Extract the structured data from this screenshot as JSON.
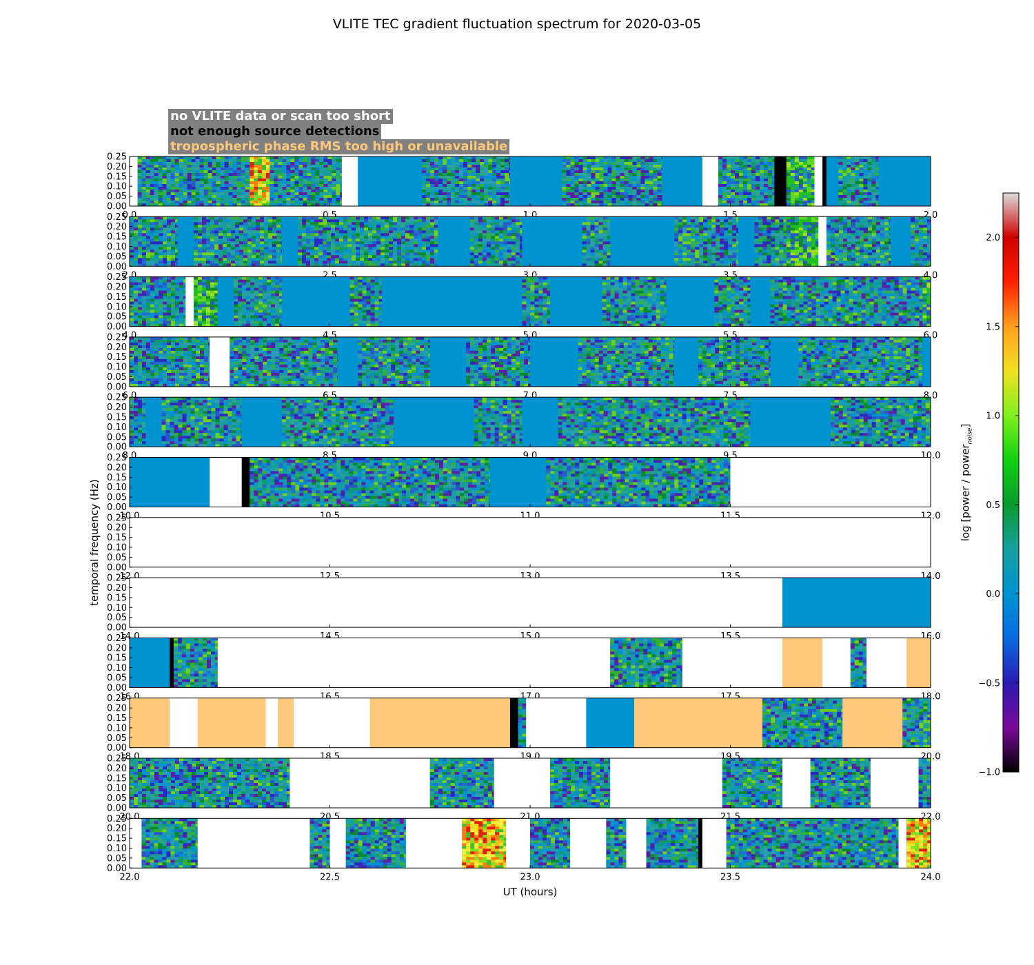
{
  "chart_data": {
    "type": "heatmap",
    "title": "VLITE TEC gradient fluctuation spectrum for 2020-03-05",
    "xlabel": "UT (hours)",
    "ylabel": "temporal frequency (Hz)",
    "colorbar_label": "log [power / power",
    "colorbar_label_sub": "noise",
    "colorbar_label_end": "]",
    "colorbar_range": [
      -1.0,
      2.25
    ],
    "colorbar_ticks": [
      "2.0",
      "1.5",
      "1.0",
      "0.5",
      "0.0",
      "−0.5",
      "−1.0"
    ],
    "colorbar_tick_values": [
      2.0,
      1.5,
      1.0,
      0.5,
      0.0,
      -0.5,
      -1.0
    ],
    "yticks": [
      "0.25",
      "0.20",
      "0.15",
      "0.10",
      "0.05",
      "0.00"
    ],
    "ytick_values": [
      0.25,
      0.2,
      0.15,
      0.1,
      0.05,
      0.0
    ],
    "ylim": [
      0,
      0.25
    ],
    "legend": [
      {
        "label": "no VLITE data or scan too short",
        "color": "#ffffff"
      },
      {
        "label": "not enough source detections",
        "color": "#000000"
      },
      {
        "label": "tropospheric phase RMS too high or unavailable",
        "color": "#ffc87a"
      }
    ],
    "panels": [
      {
        "xlim": [
          0,
          2
        ],
        "xticks": [
          "0.0",
          "0.5",
          "1.0",
          "1.5",
          "2.0"
        ],
        "segments": [
          [
            0.0,
            0.02,
            "n"
          ],
          [
            0.02,
            0.3,
            "d"
          ],
          [
            0.3,
            0.32,
            "h"
          ],
          [
            0.32,
            0.32,
            "n"
          ],
          [
            0.32,
            0.35,
            "h"
          ],
          [
            0.35,
            0.53,
            "d"
          ],
          [
            0.53,
            0.57,
            "n"
          ],
          [
            0.57,
            0.73,
            "q"
          ],
          [
            0.73,
            0.95,
            "d"
          ],
          [
            0.95,
            1.08,
            "q"
          ],
          [
            1.08,
            1.33,
            "d"
          ],
          [
            1.33,
            1.43,
            "q"
          ],
          [
            1.43,
            1.47,
            "n"
          ],
          [
            1.47,
            1.61,
            "d"
          ],
          [
            1.61,
            1.64,
            "b"
          ],
          [
            1.64,
            1.71,
            "g"
          ],
          [
            1.71,
            1.73,
            "n"
          ],
          [
            1.73,
            1.74,
            "b"
          ],
          [
            1.74,
            1.77,
            "q"
          ],
          [
            1.77,
            1.87,
            "d"
          ],
          [
            1.87,
            2.0,
            "q"
          ]
        ]
      },
      {
        "xlim": [
          2,
          4
        ],
        "xticks": [
          "2.0",
          "2.5",
          "3.0",
          "3.5",
          "4.0"
        ],
        "segments": [
          [
            2.0,
            2.12,
            "d"
          ],
          [
            2.12,
            2.16,
            "q"
          ],
          [
            2.16,
            2.38,
            "d"
          ],
          [
            2.38,
            2.42,
            "q"
          ],
          [
            2.42,
            2.77,
            "d"
          ],
          [
            2.77,
            2.85,
            "q"
          ],
          [
            2.85,
            2.98,
            "d"
          ],
          [
            2.98,
            3.13,
            "q"
          ],
          [
            3.13,
            3.2,
            "d"
          ],
          [
            3.2,
            3.36,
            "q"
          ],
          [
            3.36,
            3.52,
            "d"
          ],
          [
            3.52,
            3.56,
            "q"
          ],
          [
            3.56,
            3.64,
            "d"
          ],
          [
            3.64,
            3.72,
            "g"
          ],
          [
            3.72,
            3.74,
            "n"
          ],
          [
            3.74,
            3.9,
            "d"
          ],
          [
            3.9,
            3.95,
            "q"
          ],
          [
            3.95,
            4.0,
            "d"
          ]
        ]
      },
      {
        "xlim": [
          4,
          6
        ],
        "xticks": [
          "4.0",
          "4.5",
          "5.0",
          "5.5",
          "6.0"
        ],
        "segments": [
          [
            4.0,
            4.14,
            "d"
          ],
          [
            4.14,
            4.16,
            "n"
          ],
          [
            4.16,
            4.22,
            "g"
          ],
          [
            4.22,
            4.26,
            "q"
          ],
          [
            4.26,
            4.38,
            "d"
          ],
          [
            4.38,
            4.55,
            "q"
          ],
          [
            4.55,
            4.63,
            "d"
          ],
          [
            4.63,
            4.98,
            "q"
          ],
          [
            4.98,
            5.05,
            "d"
          ],
          [
            5.05,
            5.18,
            "q"
          ],
          [
            5.18,
            5.34,
            "d"
          ],
          [
            5.34,
            5.46,
            "q"
          ],
          [
            5.46,
            5.55,
            "d"
          ],
          [
            5.55,
            5.6,
            "q"
          ],
          [
            5.6,
            5.98,
            "d"
          ],
          [
            5.98,
            6.0,
            "g"
          ]
        ]
      },
      {
        "xlim": [
          6,
          8
        ],
        "xticks": [
          "6.0",
          "6.5",
          "7.0",
          "7.5",
          "8.0"
        ],
        "segments": [
          [
            6.0,
            6.2,
            "d"
          ],
          [
            6.2,
            6.25,
            "n"
          ],
          [
            6.25,
            6.52,
            "d"
          ],
          [
            6.52,
            6.57,
            "q"
          ],
          [
            6.57,
            6.75,
            "d"
          ],
          [
            6.75,
            6.84,
            "q"
          ],
          [
            6.84,
            7.0,
            "d"
          ],
          [
            7.0,
            7.12,
            "q"
          ],
          [
            7.12,
            7.36,
            "d"
          ],
          [
            7.36,
            7.42,
            "q"
          ],
          [
            7.42,
            7.6,
            "d"
          ],
          [
            7.6,
            7.67,
            "q"
          ],
          [
            7.67,
            7.98,
            "d"
          ],
          [
            7.98,
            8.0,
            "q"
          ]
        ]
      },
      {
        "xlim": [
          8,
          10
        ],
        "xticks": [
          "8.0",
          "8.5",
          "9.0",
          "9.5",
          "10.0"
        ],
        "segments": [
          [
            8.0,
            8.04,
            "d"
          ],
          [
            8.04,
            8.08,
            "q"
          ],
          [
            8.08,
            8.28,
            "d"
          ],
          [
            8.28,
            8.38,
            "q"
          ],
          [
            8.38,
            8.66,
            "d"
          ],
          [
            8.66,
            8.86,
            "q"
          ],
          [
            8.86,
            8.98,
            "d"
          ],
          [
            8.98,
            9.07,
            "q"
          ],
          [
            9.07,
            9.55,
            "d"
          ],
          [
            9.55,
            9.75,
            "q"
          ],
          [
            9.75,
            10.0,
            "d"
          ]
        ]
      },
      {
        "xlim": [
          10,
          12
        ],
        "xticks": [
          "10.0",
          "10.5",
          "11.0",
          "11.5",
          "12.0"
        ],
        "segments": [
          [
            10.0,
            10.2,
            "q"
          ],
          [
            10.2,
            10.28,
            "n"
          ],
          [
            10.28,
            10.3,
            "b"
          ],
          [
            10.3,
            10.68,
            "d"
          ],
          [
            10.68,
            10.9,
            "d"
          ],
          [
            10.9,
            11.04,
            "q"
          ],
          [
            11.04,
            11.5,
            "d"
          ],
          [
            11.5,
            12.0,
            "n"
          ]
        ]
      },
      {
        "xlim": [
          12,
          14
        ],
        "xticks": [
          "12.0",
          "12.5",
          "13.0",
          "13.5",
          "14.0"
        ],
        "segments": [
          [
            12.0,
            14.0,
            "n"
          ]
        ]
      },
      {
        "xlim": [
          14,
          16
        ],
        "xticks": [
          "14.0",
          "14.5",
          "15.0",
          "15.5",
          "16.0"
        ],
        "segments": [
          [
            14.0,
            15.63,
            "n"
          ],
          [
            15.63,
            16.0,
            "q"
          ]
        ]
      },
      {
        "xlim": [
          16,
          18
        ],
        "xticks": [
          "16.0",
          "16.5",
          "17.0",
          "17.5",
          "18.0"
        ],
        "segments": [
          [
            16.0,
            16.1,
            "q"
          ],
          [
            16.1,
            16.11,
            "b"
          ],
          [
            16.11,
            16.22,
            "d"
          ],
          [
            16.22,
            17.2,
            "n"
          ],
          [
            17.2,
            17.38,
            "d"
          ],
          [
            17.38,
            17.63,
            "n"
          ],
          [
            17.63,
            17.73,
            "o"
          ],
          [
            17.73,
            17.8,
            "n"
          ],
          [
            17.8,
            17.84,
            "d"
          ],
          [
            17.84,
            17.94,
            "n"
          ],
          [
            17.94,
            18.0,
            "o"
          ]
        ]
      },
      {
        "xlim": [
          18,
          20
        ],
        "xticks": [
          "18.0",
          "18.5",
          "19.0",
          "19.5",
          "20.0"
        ],
        "segments": [
          [
            18.0,
            18.1,
            "o"
          ],
          [
            18.1,
            18.17,
            "n"
          ],
          [
            18.17,
            18.34,
            "o"
          ],
          [
            18.34,
            18.37,
            "n"
          ],
          [
            18.37,
            18.41,
            "o"
          ],
          [
            18.41,
            18.6,
            "n"
          ],
          [
            18.6,
            18.95,
            "o"
          ],
          [
            18.95,
            18.97,
            "b"
          ],
          [
            18.97,
            18.99,
            "d"
          ],
          [
            18.99,
            19.14,
            "n"
          ],
          [
            19.14,
            19.26,
            "q"
          ],
          [
            19.26,
            19.58,
            "o"
          ],
          [
            19.58,
            19.78,
            "d"
          ],
          [
            19.78,
            19.93,
            "o"
          ],
          [
            19.93,
            20.0,
            "d"
          ]
        ]
      },
      {
        "xlim": [
          20,
          22
        ],
        "xticks": [
          "20.0",
          "20.5",
          "21.0",
          "21.5",
          "22.0"
        ],
        "segments": [
          [
            20.0,
            20.4,
            "d"
          ],
          [
            20.4,
            20.75,
            "n"
          ],
          [
            20.75,
            20.91,
            "d"
          ],
          [
            20.91,
            21.05,
            "n"
          ],
          [
            21.05,
            21.2,
            "d"
          ],
          [
            21.2,
            21.48,
            "n"
          ],
          [
            21.48,
            21.63,
            "d"
          ],
          [
            21.63,
            21.7,
            "n"
          ],
          [
            21.7,
            21.85,
            "d"
          ],
          [
            21.85,
            21.97,
            "n"
          ],
          [
            21.97,
            22.0,
            "d"
          ]
        ]
      },
      {
        "xlim": [
          22,
          24
        ],
        "xticks": [
          "22.0",
          "22.5",
          "23.0",
          "23.5",
          "24.0"
        ],
        "segments": [
          [
            22.0,
            22.03,
            "n"
          ],
          [
            22.03,
            22.17,
            "d"
          ],
          [
            22.17,
            22.45,
            "n"
          ],
          [
            22.45,
            22.5,
            "d"
          ],
          [
            22.5,
            22.54,
            "n"
          ],
          [
            22.54,
            22.69,
            "d"
          ],
          [
            22.69,
            22.83,
            "n"
          ],
          [
            22.83,
            22.94,
            "h"
          ],
          [
            22.94,
            23.0,
            "n"
          ],
          [
            23.0,
            23.1,
            "d"
          ],
          [
            23.1,
            23.19,
            "n"
          ],
          [
            23.19,
            23.24,
            "d"
          ],
          [
            23.24,
            23.29,
            "n"
          ],
          [
            23.29,
            23.42,
            "d"
          ],
          [
            23.42,
            23.43,
            "b"
          ],
          [
            23.43,
            23.49,
            "n"
          ],
          [
            23.49,
            23.92,
            "d"
          ],
          [
            23.92,
            23.94,
            "n"
          ],
          [
            23.94,
            24.0,
            "h"
          ]
        ]
      }
    ]
  }
}
